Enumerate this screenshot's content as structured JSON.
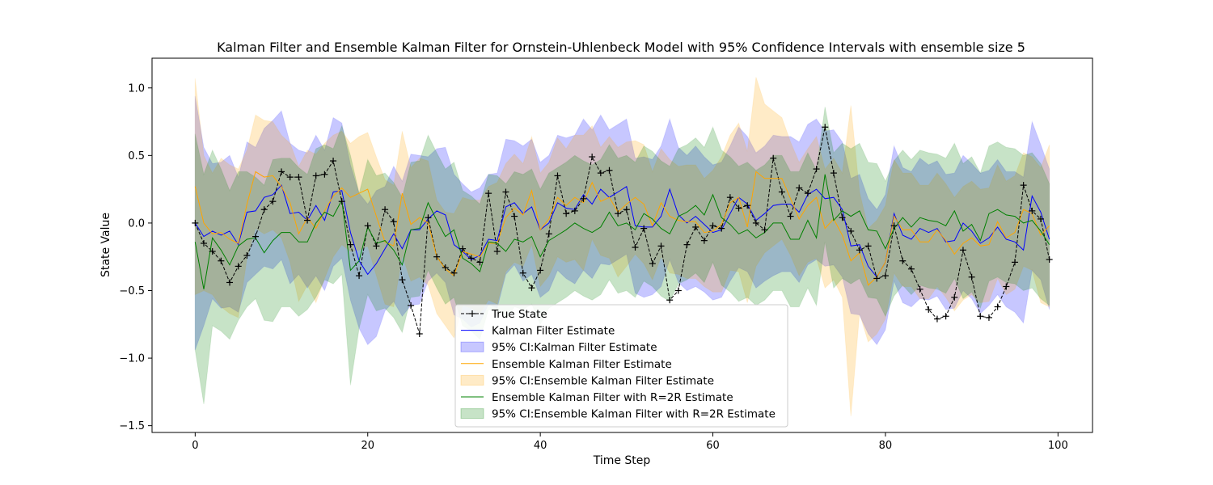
{
  "chart_data": {
    "type": "line",
    "title": "Kalman Filter and Ensemble Kalman Filter for Ornstein-Uhlenbeck Model with 95% Confidence Intervals with ensemble size 5",
    "xlabel": "Time Step",
    "ylabel": "State Value",
    "xlim": [
      -5,
      104
    ],
    "ylim": [
      -1.55,
      1.22
    ],
    "xticks": [
      0,
      20,
      40,
      60,
      80,
      100
    ],
    "yticks": [
      -1.5,
      -1.0,
      -0.5,
      0.0,
      0.5,
      1.0
    ],
    "xtick_labels": [
      "0",
      "20",
      "40",
      "60",
      "80",
      "100"
    ],
    "ytick_labels": [
      "−1.5",
      "−1.0",
      "−0.5",
      "0.0",
      "0.5",
      "1.0"
    ],
    "grid": false,
    "legend_position": "lower-center",
    "x": [
      0,
      1,
      2,
      3,
      4,
      5,
      6,
      7,
      8,
      9,
      10,
      11,
      12,
      13,
      14,
      15,
      16,
      17,
      18,
      19,
      20,
      21,
      22,
      23,
      24,
      25,
      26,
      27,
      28,
      29,
      30,
      31,
      32,
      33,
      34,
      35,
      36,
      37,
      38,
      39,
      40,
      41,
      42,
      43,
      44,
      45,
      46,
      47,
      48,
      49,
      50,
      51,
      52,
      53,
      54,
      55,
      56,
      57,
      58,
      59,
      60,
      61,
      62,
      63,
      64,
      65,
      66,
      67,
      68,
      69,
      70,
      71,
      72,
      73,
      74,
      75,
      76,
      77,
      78,
      79,
      80,
      81,
      82,
      83,
      84,
      85,
      86,
      87,
      88,
      89,
      90,
      91,
      92,
      93,
      94,
      95,
      96,
      97,
      98,
      99
    ],
    "series": [
      {
        "name": "True State",
        "kind": "line",
        "color": "#000000",
        "values": [
          0.0,
          -0.15,
          -0.21,
          -0.28,
          -0.44,
          -0.32,
          -0.24,
          -0.1,
          0.1,
          0.16,
          0.38,
          0.34,
          0.34,
          0.02,
          0.35,
          0.36,
          0.46,
          0.16,
          -0.16,
          -0.39,
          -0.02,
          -0.17,
          0.1,
          0.01,
          -0.42,
          -0.61,
          -0.82,
          0.04,
          -0.25,
          -0.33,
          -0.37,
          -0.19,
          -0.26,
          -0.29,
          0.22,
          -0.21,
          0.23,
          0.05,
          -0.37,
          -0.48,
          -0.35,
          -0.08,
          0.35,
          0.07,
          0.09,
          0.18,
          0.49,
          0.37,
          0.39,
          0.07,
          0.1,
          -0.18,
          -0.04,
          -0.3,
          -0.17,
          -0.57,
          -0.5,
          -0.16,
          -0.03,
          -0.13,
          -0.02,
          -0.04,
          0.19,
          0.11,
          0.13,
          0.0,
          -0.05,
          0.48,
          0.23,
          0.05,
          0.26,
          0.22,
          0.4,
          0.71,
          0.37,
          0.04,
          -0.06,
          -0.2,
          -0.17,
          -0.41,
          -0.39,
          -0.02,
          -0.28,
          -0.34,
          -0.49,
          -0.64,
          -0.71,
          -0.69,
          -0.55,
          -0.2,
          -0.4,
          -0.69,
          -0.7,
          -0.62,
          -0.47,
          -0.29,
          0.28,
          0.09,
          0.03,
          -0.27
        ]
      },
      {
        "name": "Kalman Filter Estimate",
        "kind": "line",
        "color": "#0000ff",
        "values": [
          0.0,
          -0.1,
          -0.06,
          -0.09,
          -0.06,
          -0.16,
          0.08,
          0.09,
          0.19,
          0.21,
          0.28,
          0.07,
          0.08,
          0.02,
          0.13,
          0.02,
          0.23,
          0.24,
          -0.07,
          -0.28,
          -0.38,
          -0.3,
          -0.19,
          -0.08,
          -0.19,
          -0.05,
          -0.05,
          0.03,
          0.09,
          0.06,
          -0.16,
          -0.21,
          -0.27,
          -0.24,
          -0.12,
          -0.13,
          0.12,
          0.15,
          0.07,
          0.12,
          -0.05,
          0.0,
          0.15,
          0.11,
          0.1,
          0.21,
          0.14,
          0.25,
          0.19,
          0.23,
          0.27,
          -0.02,
          -0.03,
          -0.03,
          0.05,
          0.25,
          0.06,
          0.0,
          0.05,
          -0.01,
          -0.07,
          -0.05,
          0.07,
          0.19,
          0.14,
          0.02,
          0.07,
          0.13,
          0.14,
          0.14,
          0.08,
          0.21,
          0.25,
          0.18,
          0.19,
          0.1,
          -0.17,
          -0.16,
          -0.32,
          -0.4,
          -0.29,
          0.07,
          -0.09,
          -0.12,
          -0.04,
          -0.07,
          -0.04,
          -0.14,
          -0.13,
          0.0,
          -0.06,
          -0.15,
          -0.11,
          -0.03,
          -0.12,
          -0.14,
          -0.2,
          0.2,
          0.08,
          -0.12
        ]
      },
      {
        "name": "95% CI:Kalman Filter Estimate",
        "kind": "band",
        "color": "#0000ff",
        "center_series": "Kalman Filter Estimate",
        "halfwidth_values": [
          0.94,
          0.66,
          0.5,
          0.54,
          0.56,
          0.5,
          0.52,
          0.47,
          0.51,
          0.55,
          0.55,
          0.52,
          0.46,
          0.5,
          0.52,
          0.52,
          0.55,
          0.5,
          0.5,
          0.5,
          0.52,
          0.54,
          0.46,
          0.5,
          0.5,
          0.56,
          0.55,
          0.46,
          0.46,
          0.5,
          0.52,
          0.5,
          0.5,
          0.5,
          0.48,
          0.5,
          0.5,
          0.46,
          0.5,
          0.5,
          0.5,
          0.5,
          0.5,
          0.52,
          0.55,
          0.56,
          0.55,
          0.55,
          0.5,
          0.5,
          0.5,
          0.5,
          0.52,
          0.5,
          0.52,
          0.52,
          0.5,
          0.5,
          0.52,
          0.5,
          0.5,
          0.5,
          0.5,
          0.52,
          0.5,
          0.5,
          0.5,
          0.52,
          0.5,
          0.5,
          0.52,
          0.52,
          0.52,
          0.5,
          0.5,
          0.5,
          0.5,
          0.52,
          0.5,
          0.5,
          0.5,
          0.5,
          0.5,
          0.5,
          0.52,
          0.5,
          0.5,
          0.5,
          0.5,
          0.5,
          0.5,
          0.52,
          0.5,
          0.5,
          0.5,
          0.52,
          0.54,
          0.55,
          0.5,
          0.52
        ]
      },
      {
        "name": "Ensemble Kalman Filter Estimate",
        "kind": "line",
        "color": "#ffa500",
        "values": [
          0.27,
          0.0,
          -0.08,
          -0.07,
          -0.12,
          -0.15,
          0.14,
          0.38,
          0.34,
          0.35,
          0.27,
          0.15,
          -0.08,
          0.04,
          -0.04,
          0.09,
          0.2,
          0.26,
          0.19,
          0.22,
          0.25,
          0.05,
          -0.14,
          -0.17,
          0.22,
          -0.01,
          0.04,
          0.0,
          -0.25,
          -0.34,
          -0.39,
          -0.21,
          -0.23,
          -0.25,
          -0.15,
          -0.15,
          0.04,
          0.11,
          0.06,
          0.24,
          -0.05,
          0.03,
          0.19,
          0.13,
          0.19,
          0.15,
          0.3,
          0.16,
          0.19,
          0.08,
          0.14,
          0.19,
          0.14,
          -0.02,
          0.15,
          0.05,
          0.02,
          0.01,
          0.01,
          -0.07,
          -0.06,
          -0.01,
          0.15,
          0.19,
          -0.03,
          0.38,
          0.33,
          0.33,
          0.33,
          0.18,
          0.03,
          0.13,
          0.19,
          -0.04,
          0.03,
          -0.09,
          -0.28,
          -0.22,
          -0.46,
          -0.4,
          -0.29,
          0.05,
          -0.05,
          -0.05,
          -0.14,
          -0.14,
          -0.05,
          -0.13,
          -0.23,
          -0.15,
          -0.11,
          -0.17,
          -0.16,
          0.01,
          -0.11,
          -0.07,
          0.1,
          0.07,
          -0.09,
          -0.02
        ]
      },
      {
        "name": "95% CI:Ensemble Kalman Filter Estimate",
        "kind": "band",
        "color": "#ffa500",
        "center_series": "Ensemble Kalman Filter Estimate",
        "halfwidth_values": [
          0.8,
          0.5,
          0.45,
          0.55,
          0.55,
          0.55,
          0.4,
          0.42,
          0.42,
          0.4,
          0.38,
          0.44,
          0.5,
          0.5,
          0.55,
          0.5,
          0.45,
          0.42,
          0.4,
          0.42,
          0.42,
          0.44,
          0.46,
          0.45,
          0.46,
          0.42,
          0.44,
          0.46,
          0.42,
          0.42,
          0.46,
          0.4,
          0.4,
          0.42,
          0.42,
          0.45,
          0.4,
          0.4,
          0.38,
          0.4,
          0.42,
          0.42,
          0.44,
          0.42,
          0.46,
          0.5,
          0.42,
          0.4,
          0.45,
          0.48,
          0.46,
          0.42,
          0.44,
          0.4,
          0.4,
          0.42,
          0.4,
          0.42,
          0.42,
          0.4,
          0.45,
          0.5,
          0.5,
          0.55,
          0.56,
          0.7,
          0.55,
          0.5,
          0.45,
          0.42,
          0.42,
          0.42,
          0.45,
          0.44,
          0.45,
          0.46,
          1.15,
          0.45,
          0.42,
          0.42,
          0.42,
          0.42,
          0.42,
          0.42,
          0.42,
          0.42,
          0.42,
          0.42,
          0.42,
          0.42,
          0.42,
          0.42,
          0.42,
          0.42,
          0.42,
          0.42,
          0.42,
          0.42,
          0.5,
          0.6
        ]
      },
      {
        "name": "Ensemble Kalman Filter with R=2R Estimate",
        "kind": "line",
        "color": "#008000",
        "values": [
          -0.14,
          -0.49,
          -0.11,
          -0.2,
          -0.31,
          -0.17,
          -0.12,
          -0.11,
          -0.22,
          -0.13,
          -0.07,
          -0.07,
          -0.14,
          -0.14,
          0.0,
          0.08,
          0.05,
          0.17,
          -0.35,
          -0.28,
          -0.03,
          -0.15,
          -0.13,
          -0.2,
          -0.31,
          -0.05,
          -0.04,
          0.15,
          0.02,
          -0.1,
          -0.05,
          -0.26,
          -0.3,
          -0.36,
          -0.14,
          -0.15,
          -0.21,
          -0.12,
          -0.14,
          -0.1,
          -0.25,
          -0.13,
          -0.09,
          -0.05,
          0.0,
          -0.04,
          -0.07,
          -0.03,
          0.08,
          -0.02,
          0.0,
          -0.05,
          0.07,
          0.03,
          -0.04,
          -0.08,
          0.05,
          0.08,
          0.13,
          0.06,
          0.21,
          0.04,
          -0.01,
          -0.08,
          -0.05,
          -0.11,
          -0.07,
          0.0,
          0.0,
          -0.12,
          -0.12,
          0.02,
          -0.11,
          0.36,
          0.02,
          0.09,
          0.05,
          0.09,
          -0.05,
          -0.06,
          -0.19,
          -0.04,
          0.04,
          -0.03,
          0.04,
          0.02,
          0.01,
          -0.02,
          0.09,
          -0.06,
          -0.01,
          -0.13,
          0.07,
          0.1,
          0.06,
          0.05,
          0.0,
          0.02,
          -0.06,
          -0.16
        ]
      },
      {
        "name": "95% CI:Ensemble Kalman Filter with R=2R Estimate",
        "kind": "band",
        "color": "#008000",
        "center_series": "Ensemble Kalman Filter with R=2R Estimate",
        "halfwidth_values": [
          0.8,
          0.85,
          0.65,
          0.6,
          0.55,
          0.55,
          0.5,
          0.45,
          0.5,
          0.6,
          0.55,
          0.55,
          0.55,
          0.5,
          0.55,
          0.5,
          0.5,
          0.55,
          0.85,
          0.5,
          0.5,
          0.5,
          0.5,
          0.5,
          0.5,
          0.5,
          0.5,
          0.5,
          0.5,
          0.5,
          0.5,
          0.5,
          0.5,
          0.5,
          0.5,
          0.5,
          0.5,
          0.5,
          0.5,
          0.5,
          0.5,
          0.5,
          0.5,
          0.5,
          0.5,
          0.5,
          0.5,
          0.5,
          0.5,
          0.5,
          0.5,
          0.5,
          0.5,
          0.5,
          0.5,
          0.5,
          0.5,
          0.5,
          0.5,
          0.5,
          0.5,
          0.5,
          0.5,
          0.5,
          0.5,
          0.5,
          0.5,
          0.5,
          0.5,
          0.5,
          0.5,
          0.5,
          0.5,
          0.5,
          0.5,
          0.5,
          0.5,
          0.5,
          0.5,
          0.5,
          0.5,
          0.5,
          0.5,
          0.5,
          0.5,
          0.5,
          0.5,
          0.5,
          0.5,
          0.5,
          0.5,
          0.5,
          0.5,
          0.5,
          0.5,
          0.5,
          0.5,
          0.5,
          0.5,
          0.45
        ]
      }
    ]
  }
}
